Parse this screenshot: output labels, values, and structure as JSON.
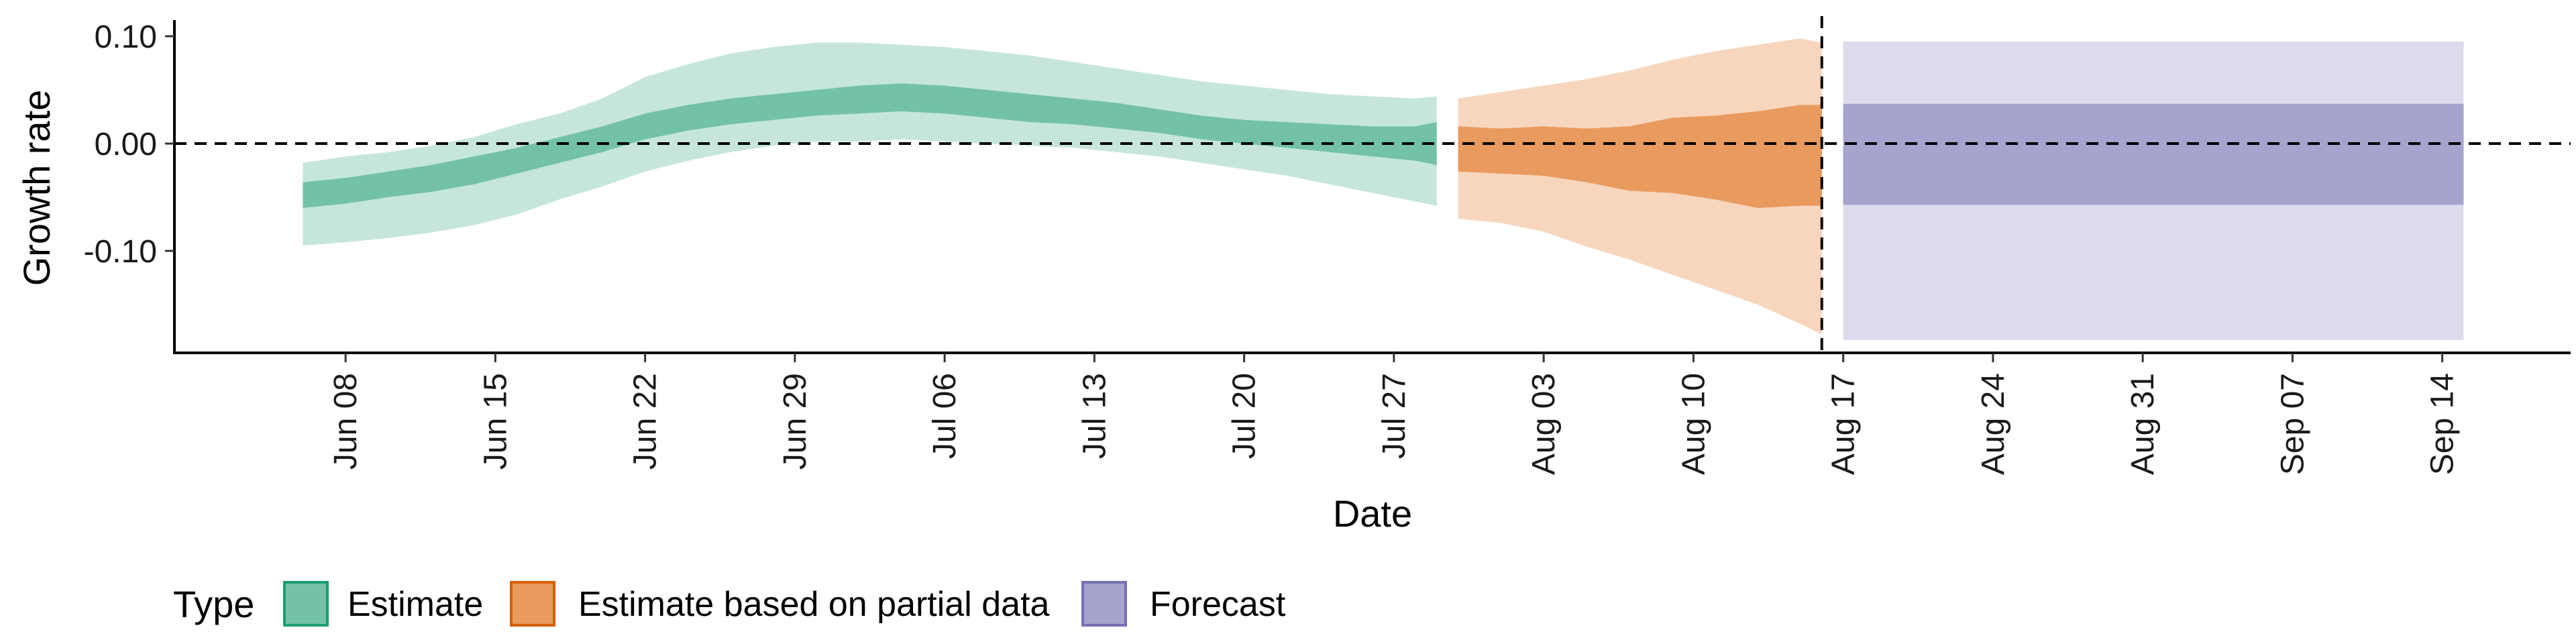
{
  "chart_data": {
    "type": "area",
    "title": "",
    "xlabel": "Date",
    "ylabel": "Growth rate",
    "xlim": [
      "2020-05-31",
      "2020-09-20"
    ],
    "ylim": [
      -0.195,
      0.115
    ],
    "x_ticks": [
      {
        "date": "2020-06-08",
        "label": "Jun 08"
      },
      {
        "date": "2020-06-15",
        "label": "Jun 15"
      },
      {
        "date": "2020-06-22",
        "label": "Jun 22"
      },
      {
        "date": "2020-06-29",
        "label": "Jun 29"
      },
      {
        "date": "2020-07-06",
        "label": "Jul 06"
      },
      {
        "date": "2020-07-13",
        "label": "Jul 13"
      },
      {
        "date": "2020-07-20",
        "label": "Jul 20"
      },
      {
        "date": "2020-07-27",
        "label": "Jul 27"
      },
      {
        "date": "2020-08-03",
        "label": "Aug 03"
      },
      {
        "date": "2020-08-10",
        "label": "Aug 10"
      },
      {
        "date": "2020-08-17",
        "label": "Aug 17"
      },
      {
        "date": "2020-08-24",
        "label": "Aug 24"
      },
      {
        "date": "2020-08-31",
        "label": "Aug 31"
      },
      {
        "date": "2020-09-07",
        "label": "Sep 07"
      },
      {
        "date": "2020-09-14",
        "label": "Sep 14"
      }
    ],
    "y_ticks": [
      {
        "value": 0.1,
        "label": "0.10"
      },
      {
        "value": 0.0,
        "label": "0.00"
      },
      {
        "value": -0.1,
        "label": "-0.10"
      }
    ],
    "reference_lines": [
      {
        "axis": "y",
        "value": 0.0,
        "style": "dashed"
      },
      {
        "axis": "x",
        "value": "2020-08-16",
        "style": "dashed"
      }
    ],
    "grid": false,
    "legend": {
      "title": "Type",
      "position": "bottom-left",
      "entries": [
        {
          "label": "Estimate",
          "fill": "#73c2a8",
          "stroke": "#1b9e77"
        },
        {
          "label": "Estimate based on partial data",
          "fill": "#e99a5e",
          "stroke": "#d95f02"
        },
        {
          "label": "Forecast",
          "fill": "#a6a3cf",
          "stroke": "#7570b3"
        }
      ]
    },
    "series": [
      {
        "name": "Estimate",
        "outer_color": "#c6e6dc",
        "inner_color": "#73c2a8",
        "points": [
          {
            "x": "2020-06-06",
            "outer": [
              -0.095,
              -0.018
            ],
            "inner": [
              -0.06,
              -0.036
            ]
          },
          {
            "x": "2020-06-08",
            "outer": [
              -0.092,
              -0.012
            ],
            "inner": [
              -0.056,
              -0.032
            ]
          },
          {
            "x": "2020-06-10",
            "outer": [
              -0.088,
              -0.008
            ],
            "inner": [
              -0.05,
              -0.026
            ]
          },
          {
            "x": "2020-06-12",
            "outer": [
              -0.083,
              -0.002
            ],
            "inner": [
              -0.045,
              -0.02
            ]
          },
          {
            "x": "2020-06-14",
            "outer": [
              -0.076,
              0.006
            ],
            "inner": [
              -0.038,
              -0.012
            ]
          },
          {
            "x": "2020-06-16",
            "outer": [
              -0.066,
              0.018
            ],
            "inner": [
              -0.028,
              -0.004
            ]
          },
          {
            "x": "2020-06-18",
            "outer": [
              -0.052,
              0.028
            ],
            "inner": [
              -0.018,
              0.006
            ]
          },
          {
            "x": "2020-06-20",
            "outer": [
              -0.04,
              0.042
            ],
            "inner": [
              -0.008,
              0.016
            ]
          },
          {
            "x": "2020-06-22",
            "outer": [
              -0.026,
              0.062
            ],
            "inner": [
              0.004,
              0.028
            ]
          },
          {
            "x": "2020-06-24",
            "outer": [
              -0.016,
              0.074
            ],
            "inner": [
              0.012,
              0.036
            ]
          },
          {
            "x": "2020-06-26",
            "outer": [
              -0.008,
              0.084
            ],
            "inner": [
              0.018,
              0.042
            ]
          },
          {
            "x": "2020-06-28",
            "outer": [
              -0.002,
              0.09
            ],
            "inner": [
              0.022,
              0.046
            ]
          },
          {
            "x": "2020-06-30",
            "outer": [
              0.002,
              0.094
            ],
            "inner": [
              0.026,
              0.05
            ]
          },
          {
            "x": "2020-07-02",
            "outer": [
              0.002,
              0.094
            ],
            "inner": [
              0.028,
              0.054
            ]
          },
          {
            "x": "2020-07-04",
            "outer": [
              0.004,
              0.092
            ],
            "inner": [
              0.03,
              0.056
            ]
          },
          {
            "x": "2020-07-06",
            "outer": [
              0.002,
              0.09
            ],
            "inner": [
              0.028,
              0.054
            ]
          },
          {
            "x": "2020-07-08",
            "outer": [
              0.0,
              0.086
            ],
            "inner": [
              0.024,
              0.05
            ]
          },
          {
            "x": "2020-07-10",
            "outer": [
              -0.002,
              0.082
            ],
            "inner": [
              0.02,
              0.046
            ]
          },
          {
            "x": "2020-07-12",
            "outer": [
              -0.004,
              0.076
            ],
            "inner": [
              0.018,
              0.042
            ]
          },
          {
            "x": "2020-07-14",
            "outer": [
              -0.008,
              0.07
            ],
            "inner": [
              0.014,
              0.038
            ]
          },
          {
            "x": "2020-07-16",
            "outer": [
              -0.012,
              0.064
            ],
            "inner": [
              0.01,
              0.032
            ]
          },
          {
            "x": "2020-07-18",
            "outer": [
              -0.018,
              0.058
            ],
            "inner": [
              0.004,
              0.026
            ]
          },
          {
            "x": "2020-07-20",
            "outer": [
              -0.024,
              0.054
            ],
            "inner": [
              0.0,
              0.022
            ]
          },
          {
            "x": "2020-07-22",
            "outer": [
              -0.03,
              0.05
            ],
            "inner": [
              -0.004,
              0.02
            ]
          },
          {
            "x": "2020-07-24",
            "outer": [
              -0.038,
              0.046
            ],
            "inner": [
              -0.008,
              0.018
            ]
          },
          {
            "x": "2020-07-26",
            "outer": [
              -0.046,
              0.044
            ],
            "inner": [
              -0.012,
              0.016
            ]
          },
          {
            "x": "2020-07-28",
            "outer": [
              -0.054,
              0.042
            ],
            "inner": [
              -0.016,
              0.016
            ]
          },
          {
            "x": "2020-07-29",
            "outer": [
              -0.058,
              0.044
            ],
            "inner": [
              -0.02,
              0.02
            ]
          }
        ]
      },
      {
        "name": "Estimate based on partial data",
        "outer_color": "#f7d6bd",
        "inner_color": "#e99a5e",
        "points": [
          {
            "x": "2020-07-30",
            "outer": [
              -0.07,
              0.042
            ],
            "inner": [
              -0.026,
              0.016
            ]
          },
          {
            "x": "2020-08-01",
            "outer": [
              -0.074,
              0.048
            ],
            "inner": [
              -0.028,
              0.014
            ]
          },
          {
            "x": "2020-08-03",
            "outer": [
              -0.082,
              0.054
            ],
            "inner": [
              -0.03,
              0.016
            ]
          },
          {
            "x": "2020-08-05",
            "outer": [
              -0.096,
              0.06
            ],
            "inner": [
              -0.036,
              0.014
            ]
          },
          {
            "x": "2020-08-07",
            "outer": [
              -0.108,
              0.068
            ],
            "inner": [
              -0.044,
              0.016
            ]
          },
          {
            "x": "2020-08-09",
            "outer": [
              -0.122,
              0.078
            ],
            "inner": [
              -0.046,
              0.024
            ]
          },
          {
            "x": "2020-08-11",
            "outer": [
              -0.136,
              0.086
            ],
            "inner": [
              -0.052,
              0.026
            ]
          },
          {
            "x": "2020-08-13",
            "outer": [
              -0.15,
              0.092
            ],
            "inner": [
              -0.06,
              0.03
            ]
          },
          {
            "x": "2020-08-15",
            "outer": [
              -0.168,
              0.098
            ],
            "inner": [
              -0.058,
              0.036
            ]
          },
          {
            "x": "2020-08-16",
            "outer": [
              -0.178,
              0.094
            ],
            "inner": [
              -0.058,
              0.036
            ]
          }
        ]
      },
      {
        "name": "Forecast",
        "outer_color": "#dcdbec",
        "inner_color": "#a6a3cf",
        "points": [
          {
            "x": "2020-08-17",
            "outer": [
              -0.183,
              0.095
            ],
            "inner": [
              -0.057,
              0.037
            ]
          },
          {
            "x": "2020-09-15",
            "outer": [
              -0.183,
              0.095
            ],
            "inner": [
              -0.057,
              0.037
            ]
          }
        ]
      }
    ]
  }
}
